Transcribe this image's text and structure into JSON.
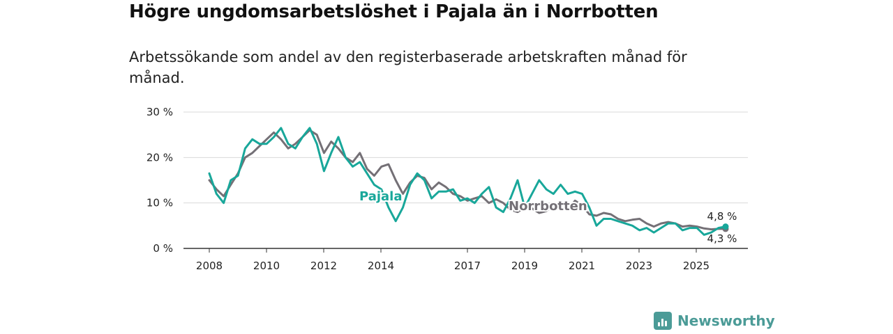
{
  "title": "Högre ungdomsarbetslöshet i Pajala än i Norrbotten",
  "subtitle": "Arbetssökande som andel av den registerbaserade arbetskraften månad för månad.",
  "brand": {
    "name": "Newsworthy",
    "icon": "newsworthy-logo-icon"
  },
  "colors": {
    "pajala": "#18a79a",
    "norrbotten": "#747076",
    "grid": "#d9d9d9",
    "axis": "#333333"
  },
  "chart_data": {
    "type": "line",
    "title": "Högre ungdomsarbetslöshet i Pajala än i Norrbotten",
    "ylim": [
      0,
      30
    ],
    "xlim": [
      2008,
      2026.5
    ],
    "y_ticks": [
      0,
      10,
      20,
      30
    ],
    "y_tick_labels": [
      "0 %",
      "10 %",
      "20 %",
      "30 %"
    ],
    "x_ticks": [
      2008,
      2010,
      2012,
      2014,
      2017,
      2019,
      2021,
      2023,
      2025
    ],
    "x_tick_labels": [
      "2008",
      "2010",
      "2012",
      "2014",
      "2017",
      "2019",
      "2021",
      "2023",
      "2025"
    ],
    "grid": true,
    "series": [
      {
        "name": "Norrbotten",
        "label_text": "Norrbotten",
        "end_label": "4,3 %",
        "x": [
          2008.0,
          2008.25,
          2008.5,
          2008.75,
          2009.0,
          2009.25,
          2009.5,
          2009.75,
          2010.0,
          2010.25,
          2010.5,
          2010.75,
          2011.0,
          2011.25,
          2011.5,
          2011.75,
          2012.0,
          2012.25,
          2012.5,
          2012.75,
          2013.0,
          2013.25,
          2013.5,
          2013.75,
          2014.0,
          2014.25,
          2014.5,
          2014.75,
          2015.0,
          2015.25,
          2015.5,
          2015.75,
          2016.0,
          2016.25,
          2016.5,
          2016.75,
          2017.0,
          2017.25,
          2017.5,
          2017.75,
          2018.0,
          2018.25,
          2018.5,
          2018.75,
          2019.0,
          2019.25,
          2019.5,
          2019.75,
          2020.0,
          2020.25,
          2020.5,
          2020.75,
          2021.0,
          2021.25,
          2021.5,
          2021.75,
          2022.0,
          2022.25,
          2022.5,
          2022.75,
          2023.0,
          2023.25,
          2023.5,
          2023.75,
          2024.0,
          2024.25,
          2024.5,
          2024.75,
          2025.0,
          2025.25,
          2025.5,
          2025.75,
          2026.0
        ],
        "values": [
          15.0,
          13.0,
          11.5,
          14.0,
          16.5,
          20.0,
          21.0,
          22.5,
          24.0,
          25.5,
          24.0,
          22.0,
          23.0,
          24.5,
          26.0,
          25.0,
          21.0,
          23.5,
          22.0,
          20.0,
          19.0,
          21.0,
          17.5,
          16.0,
          18.0,
          18.5,
          15.0,
          12.0,
          14.5,
          16.0,
          15.5,
          13.0,
          14.5,
          13.5,
          12.0,
          11.5,
          10.5,
          11.0,
          11.5,
          10.0,
          10.8,
          10.0,
          8.5,
          8.0,
          9.0,
          8.8,
          7.8,
          8.2,
          9.5,
          9.0,
          8.5,
          10.5,
          9.5,
          7.5,
          7.2,
          7.8,
          7.5,
          6.5,
          6.0,
          6.3,
          6.5,
          5.5,
          4.8,
          5.5,
          5.8,
          5.5,
          4.8,
          5.0,
          4.8,
          4.4,
          4.2,
          4.3,
          4.3
        ]
      },
      {
        "name": "Pajala",
        "label_text": "Pajala",
        "end_label": "4,8 %",
        "x": [
          2008.0,
          2008.25,
          2008.5,
          2008.75,
          2009.0,
          2009.25,
          2009.5,
          2009.75,
          2010.0,
          2010.25,
          2010.5,
          2010.75,
          2011.0,
          2011.25,
          2011.5,
          2011.75,
          2012.0,
          2012.25,
          2012.5,
          2012.75,
          2013.0,
          2013.25,
          2013.5,
          2013.75,
          2014.0,
          2014.25,
          2014.5,
          2014.75,
          2015.0,
          2015.25,
          2015.5,
          2015.75,
          2016.0,
          2016.25,
          2016.5,
          2016.75,
          2017.0,
          2017.25,
          2017.5,
          2017.75,
          2018.0,
          2018.25,
          2018.5,
          2018.75,
          2019.0,
          2019.25,
          2019.5,
          2019.75,
          2020.0,
          2020.25,
          2020.5,
          2020.75,
          2021.0,
          2021.25,
          2021.5,
          2021.75,
          2022.0,
          2022.25,
          2022.5,
          2022.75,
          2023.0,
          2023.25,
          2023.5,
          2023.75,
          2024.0,
          2024.25,
          2024.5,
          2024.75,
          2025.0,
          2025.25,
          2025.5,
          2025.75,
          2026.0
        ],
        "values": [
          16.5,
          12.0,
          10.0,
          15.0,
          16.0,
          22.0,
          24.0,
          23.0,
          23.0,
          24.5,
          26.5,
          23.0,
          22.0,
          24.5,
          26.5,
          23.0,
          17.0,
          21.0,
          24.5,
          20.0,
          18.0,
          19.0,
          16.5,
          14.0,
          13.0,
          9.0,
          6.0,
          9.0,
          14.0,
          16.5,
          15.0,
          11.0,
          12.5,
          12.5,
          13.0,
          10.5,
          11.0,
          10.0,
          12.0,
          13.5,
          9.0,
          8.0,
          11.0,
          15.0,
          9.0,
          12.0,
          15.0,
          13.0,
          12.0,
          14.0,
          12.0,
          12.5,
          12.0,
          9.0,
          5.0,
          6.5,
          6.5,
          6.0,
          5.5,
          5.0,
          4.0,
          4.5,
          3.5,
          4.5,
          5.5,
          5.5,
          4.0,
          4.5,
          4.5,
          3.0,
          3.5,
          4.5,
          4.8
        ]
      }
    ]
  }
}
